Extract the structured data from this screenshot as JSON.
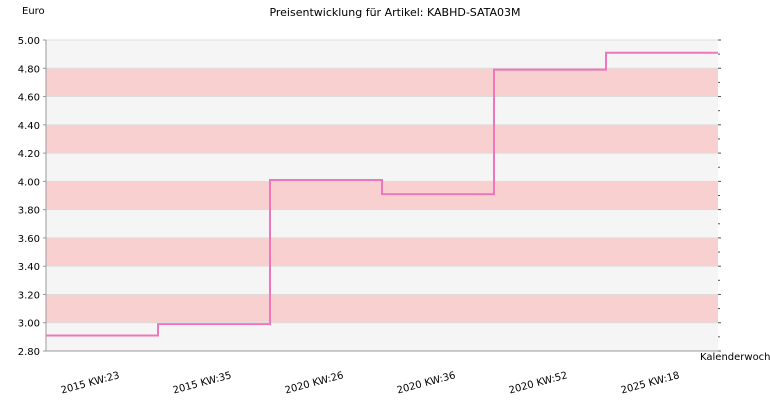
{
  "chart_data": {
    "type": "line",
    "step": true,
    "title": "Preisentwicklung für Artikel: KABHD-SATA03M",
    "ylabel": "Euro",
    "xlabel": "Kalenderwoche",
    "x_tick_labels": [
      "2015 KW:23",
      "2015 KW:35",
      "2020 KW:26",
      "2020 KW:36",
      "2020 KW:52",
      "2025 KW:18"
    ],
    "y_tick_labels": [
      "2.80",
      "3.00",
      "3.20",
      "3.40",
      "3.60",
      "3.80",
      "4.00",
      "4.20",
      "4.40",
      "4.60",
      "4.80",
      "5.00"
    ],
    "ylim": [
      2.8,
      5.0
    ],
    "series": [
      {
        "x": [
          "2015 KW:23",
          "2015 KW:35",
          "2020 KW:26",
          "2020 KW:36",
          "2020 KW:52",
          "2025 KW:18"
        ],
        "values": [
          2.91,
          2.99,
          4.01,
          3.91,
          4.79,
          4.91
        ]
      }
    ],
    "colors": {
      "line": "#ee77bb",
      "band_light": "#f5f5f5",
      "band_pink": "#f8d0d0",
      "grid": "#dddddd"
    },
    "grid": true
  }
}
